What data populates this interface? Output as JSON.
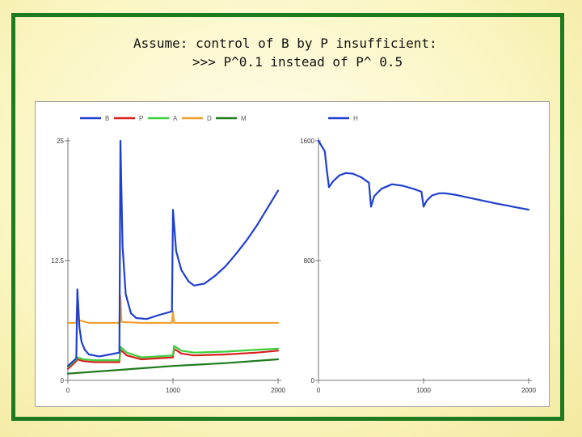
{
  "title": {
    "line1": "Assume: control of B by P insufficient:",
    "line2": ">>> P^0.1 instead of P^ 0.5"
  },
  "colors": {
    "frame": "#1e7a1e",
    "B": "#1f3fcf",
    "P": "#d8201e",
    "A": "#3ccf3c",
    "D": "#f0a030",
    "M": "#1d7a1d",
    "H": "#1f3fcf"
  },
  "chart_data": [
    {
      "type": "line",
      "title": "",
      "xlabel": "",
      "ylabel": "",
      "xlim": [
        0,
        2000
      ],
      "ylim": [
        0,
        25
      ],
      "x_ticks": [
        0,
        1000,
        2000
      ],
      "y_ticks": [
        0,
        12.5,
        25
      ],
      "x_tick_labels": [
        "0",
        "1000",
        "2000"
      ],
      "y_tick_labels": [
        "0",
        "12.5",
        "25"
      ],
      "legend_position": "top",
      "series": [
        {
          "name": "B",
          "points": [
            [
              0,
              1.5
            ],
            [
              80,
              2.3
            ],
            [
              90,
              9.5
            ],
            [
              110,
              5.5
            ],
            [
              130,
              4.0
            ],
            [
              160,
              3.2
            ],
            [
              200,
              2.7
            ],
            [
              300,
              2.5
            ],
            [
              400,
              2.7
            ],
            [
              490,
              2.9
            ],
            [
              500,
              25
            ],
            [
              520,
              14.0
            ],
            [
              550,
              9.0
            ],
            [
              600,
              7.0
            ],
            [
              650,
              6.5
            ],
            [
              750,
              6.4
            ],
            [
              860,
              6.8
            ],
            [
              990,
              7.2
            ],
            [
              1000,
              17.8
            ],
            [
              1030,
              13.5
            ],
            [
              1080,
              11.5
            ],
            [
              1150,
              10.3
            ],
            [
              1200,
              9.9
            ],
            [
              1300,
              10.1
            ],
            [
              1400,
              10.9
            ],
            [
              1500,
              11.9
            ],
            [
              1600,
              13.2
            ],
            [
              1700,
              14.6
            ],
            [
              1800,
              16.2
            ],
            [
              1900,
              18.0
            ],
            [
              2000,
              19.8
            ]
          ]
        },
        {
          "name": "P",
          "points": [
            [
              0,
              1.2
            ],
            [
              80,
              2.0
            ],
            [
              85,
              2.2
            ],
            [
              150,
              2.0
            ],
            [
              250,
              1.9
            ],
            [
              490,
              1.9
            ],
            [
              500,
              3.2
            ],
            [
              560,
              2.6
            ],
            [
              700,
              2.2
            ],
            [
              1000,
              2.4
            ],
            [
              1010,
              3.3
            ],
            [
              1080,
              2.8
            ],
            [
              1200,
              2.6
            ],
            [
              1500,
              2.7
            ],
            [
              1800,
              2.9
            ],
            [
              2000,
              3.1
            ]
          ]
        },
        {
          "name": "A",
          "points": [
            [
              0,
              1.4
            ],
            [
              80,
              2.2
            ],
            [
              85,
              2.4
            ],
            [
              150,
              2.2
            ],
            [
              250,
              2.1
            ],
            [
              490,
              2.1
            ],
            [
              500,
              3.5
            ],
            [
              560,
              2.9
            ],
            [
              700,
              2.4
            ],
            [
              1000,
              2.6
            ],
            [
              1010,
              3.6
            ],
            [
              1080,
              3.1
            ],
            [
              1200,
              2.9
            ],
            [
              1500,
              3.0
            ],
            [
              1800,
              3.2
            ],
            [
              2000,
              3.3
            ]
          ]
        },
        {
          "name": "D",
          "points": [
            [
              0,
              6.0
            ],
            [
              80,
              6.0
            ],
            [
              90,
              8.3
            ],
            [
              100,
              6.3
            ],
            [
              200,
              6.0
            ],
            [
              490,
              6.0
            ],
            [
              500,
              8.8
            ],
            [
              510,
              6.1
            ],
            [
              700,
              6.0
            ],
            [
              990,
              6.0
            ],
            [
              1000,
              7.2
            ],
            [
              1010,
              6.0
            ],
            [
              2000,
              6.0
            ]
          ]
        },
        {
          "name": "M",
          "points": [
            [
              0,
              0.7
            ],
            [
              500,
              1.1
            ],
            [
              1000,
              1.5
            ],
            [
              1500,
              1.8
            ],
            [
              2000,
              2.2
            ]
          ]
        }
      ]
    },
    {
      "type": "line",
      "title": "",
      "xlabel": "",
      "ylabel": "",
      "xlim": [
        0,
        2000
      ],
      "ylim": [
        0,
        1600
      ],
      "x_ticks": [
        0,
        1000,
        2000
      ],
      "y_ticks": [
        0,
        800,
        1600
      ],
      "x_tick_labels": [
        "0",
        "1000",
        "2000"
      ],
      "y_tick_labels": [
        "0",
        "800",
        "1600"
      ],
      "legend_position": "top",
      "series": [
        {
          "name": "H",
          "points": [
            [
              0,
              1600
            ],
            [
              60,
              1530
            ],
            [
              80,
              1400
            ],
            [
              100,
              1290
            ],
            [
              140,
              1330
            ],
            [
              200,
              1370
            ],
            [
              260,
              1385
            ],
            [
              330,
              1380
            ],
            [
              410,
              1355
            ],
            [
              480,
              1320
            ],
            [
              500,
              1160
            ],
            [
              530,
              1230
            ],
            [
              600,
              1280
            ],
            [
              700,
              1310
            ],
            [
              800,
              1300
            ],
            [
              900,
              1280
            ],
            [
              980,
              1260
            ],
            [
              1000,
              1160
            ],
            [
              1030,
              1200
            ],
            [
              1080,
              1235
            ],
            [
              1150,
              1250
            ],
            [
              1200,
              1250
            ],
            [
              1300,
              1240
            ],
            [
              1400,
              1225
            ],
            [
              1500,
              1210
            ],
            [
              1600,
              1195
            ],
            [
              1700,
              1180
            ],
            [
              1800,
              1167
            ],
            [
              1900,
              1153
            ],
            [
              2000,
              1140
            ]
          ]
        }
      ]
    }
  ]
}
